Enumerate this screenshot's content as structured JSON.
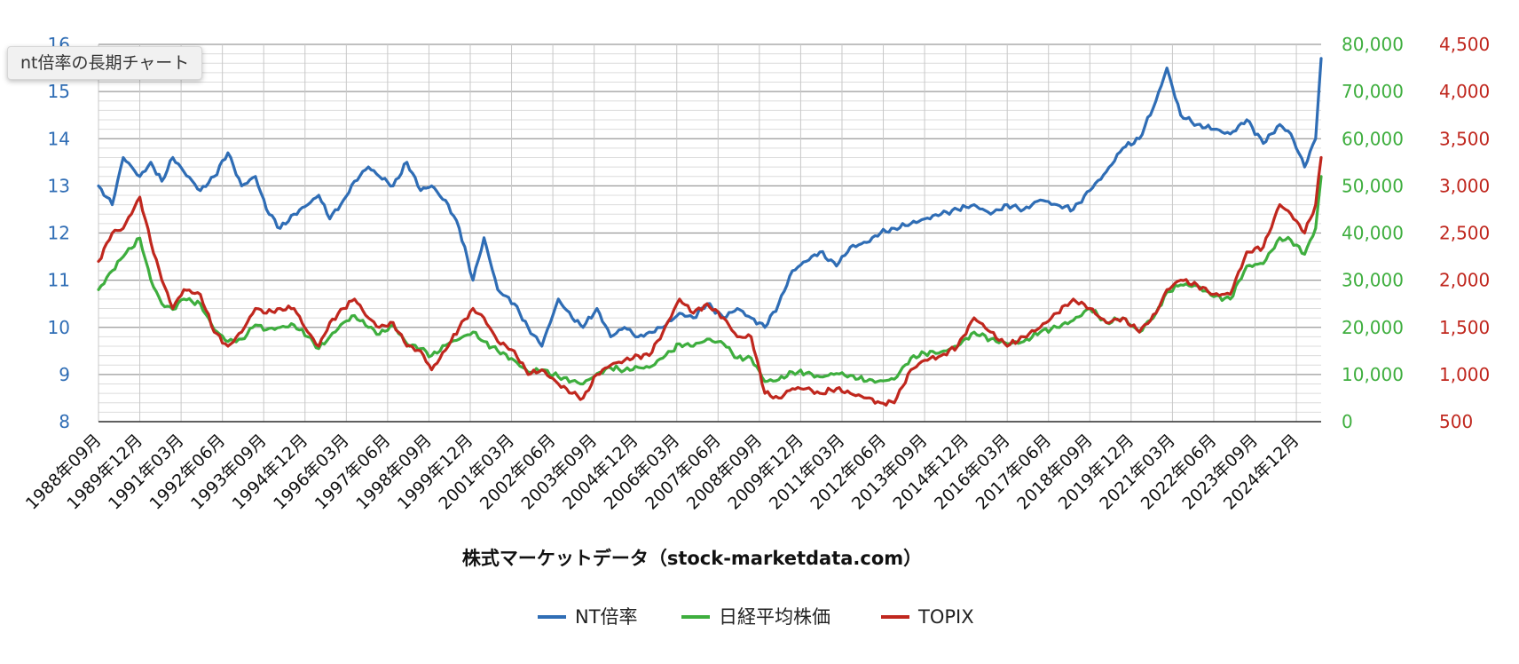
{
  "tooltip": "nt倍率の長期チャート",
  "chart_data": {
    "type": "line",
    "xlabel": "株式マーケットデータ（stock-marketdata.com）",
    "legend_position": "bottom",
    "grid": true,
    "x_range": [
      "1988-09",
      "2025-09"
    ],
    "x_ticks": [
      "1988年09月",
      "1989年12月",
      "1991年03月",
      "1992年06月",
      "1993年09月",
      "1994年12月",
      "1996年03月",
      "1997年06月",
      "1998年09月",
      "1999年12月",
      "2001年03月",
      "2002年06月",
      "2003年09月",
      "2004年12月",
      "2006年03月",
      "2007年06月",
      "2008年09月",
      "2009年12月",
      "2011年03月",
      "2012年06月",
      "2013年09月",
      "2014年12月",
      "2016年03月",
      "2017年06月",
      "2018年09月",
      "2019年12月",
      "2021年03月",
      "2022年06月",
      "2023年09月",
      "2024年12月"
    ],
    "axes": {
      "left": {
        "min": 8,
        "max": 16,
        "ticks": [
          "8",
          "9",
          "10",
          "11",
          "12",
          "13",
          "14",
          "15",
          "16"
        ],
        "color": "#2f6db5"
      },
      "right1": {
        "min": 0,
        "max": 80000,
        "ticks": [
          "0",
          "10,000",
          "20,000",
          "30,000",
          "40,000",
          "50,000",
          "60,000",
          "70,000",
          "80,000"
        ],
        "color": "#3eae3e"
      },
      "right2": {
        "min": 500,
        "max": 4500,
        "ticks": [
          "500",
          "1,000",
          "1,500",
          "2,000",
          "2,500",
          "3,000",
          "3,500",
          "4,000",
          "4,500"
        ],
        "color": "#c0271e"
      }
    },
    "series": [
      {
        "name": "NT倍率",
        "axis": "left",
        "color": "#2f6db5",
        "x": [
          "1988-09",
          "1989-02",
          "1989-06",
          "1989-12",
          "1990-04",
          "1990-08",
          "1990-12",
          "1991-04",
          "1991-10",
          "1992-03",
          "1992-08",
          "1993-01",
          "1993-06",
          "1993-10",
          "1994-03",
          "1994-08",
          "1995-01",
          "1995-05",
          "1995-09",
          "1996-02",
          "1996-06",
          "1996-11",
          "1997-03",
          "1997-08",
          "1998-01",
          "1998-06",
          "1998-10",
          "1999-04",
          "1999-08",
          "2000-01",
          "2000-05",
          "2000-10",
          "2001-04",
          "2001-09",
          "2002-02",
          "2002-08",
          "2003-01",
          "2003-05",
          "2003-10",
          "2004-03",
          "2004-08",
          "2005-01",
          "2005-05",
          "2005-10",
          "2006-04",
          "2006-09",
          "2007-02",
          "2007-08",
          "2008-01",
          "2008-06",
          "2008-11",
          "2009-04",
          "2009-09",
          "2010-02",
          "2010-07",
          "2011-01",
          "2011-06",
          "2011-12",
          "2012-05",
          "2012-10",
          "2013-04",
          "2013-09",
          "2014-03",
          "2014-09",
          "2015-03",
          "2015-09",
          "2016-03",
          "2016-09",
          "2017-03",
          "2017-09",
          "2018-03",
          "2018-09",
          "2019-03",
          "2019-09",
          "2020-03",
          "2020-09",
          "2021-01",
          "2021-06",
          "2021-12",
          "2022-06",
          "2022-12",
          "2023-06",
          "2023-12",
          "2024-06",
          "2024-10",
          "2025-03",
          "2025-07",
          "2025-09"
        ],
        "values": [
          13.0,
          12.6,
          13.6,
          13.2,
          13.5,
          13.1,
          13.6,
          13.3,
          12.9,
          13.2,
          13.7,
          13.0,
          13.2,
          12.5,
          12.1,
          12.4,
          12.6,
          12.8,
          12.3,
          12.7,
          13.1,
          13.4,
          13.2,
          13.0,
          13.5,
          12.9,
          13.0,
          12.6,
          12.1,
          11.0,
          11.9,
          10.8,
          10.5,
          10.0,
          9.6,
          10.6,
          10.2,
          10.0,
          10.4,
          9.8,
          10.0,
          9.8,
          9.9,
          10.0,
          10.3,
          10.2,
          10.5,
          10.2,
          10.4,
          10.2,
          10.0,
          10.5,
          11.2,
          11.4,
          11.6,
          11.3,
          11.7,
          11.8,
          12.0,
          12.1,
          12.2,
          12.3,
          12.4,
          12.5,
          12.6,
          12.4,
          12.6,
          12.5,
          12.7,
          12.6,
          12.5,
          12.9,
          13.3,
          13.8,
          14.0,
          14.8,
          15.5,
          14.5,
          14.3,
          14.2,
          14.1,
          14.4,
          13.9,
          14.3,
          14.1,
          13.4,
          14.0,
          15.7
        ]
      },
      {
        "name": "日経平均株価",
        "axis": "right1",
        "color": "#3eae3e",
        "x": [
          "1988-09",
          "1989-02",
          "1989-06",
          "1989-12",
          "1990-04",
          "1990-08",
          "1990-12",
          "1991-04",
          "1991-10",
          "1992-03",
          "1992-08",
          "1993-01",
          "1993-06",
          "1993-10",
          "1994-03",
          "1994-08",
          "1995-01",
          "1995-05",
          "1995-09",
          "1996-02",
          "1996-06",
          "1996-11",
          "1997-03",
          "1997-08",
          "1998-01",
          "1998-06",
          "1998-10",
          "1999-04",
          "1999-08",
          "2000-01",
          "2000-05",
          "2000-10",
          "2001-04",
          "2001-09",
          "2002-02",
          "2002-08",
          "2003-01",
          "2003-05",
          "2003-10",
          "2004-03",
          "2004-08",
          "2005-01",
          "2005-05",
          "2005-10",
          "2006-04",
          "2006-09",
          "2007-02",
          "2007-08",
          "2008-01",
          "2008-06",
          "2008-11",
          "2009-04",
          "2009-09",
          "2010-02",
          "2010-07",
          "2011-01",
          "2011-06",
          "2011-12",
          "2012-05",
          "2012-10",
          "2013-04",
          "2013-09",
          "2014-03",
          "2014-09",
          "2015-03",
          "2015-09",
          "2016-03",
          "2016-09",
          "2017-03",
          "2017-09",
          "2018-03",
          "2018-09",
          "2019-03",
          "2019-09",
          "2020-03",
          "2020-09",
          "2021-01",
          "2021-06",
          "2021-12",
          "2022-06",
          "2022-12",
          "2023-06",
          "2023-12",
          "2024-06",
          "2024-10",
          "2025-03",
          "2025-07",
          "2025-09"
        ],
        "values": [
          28000,
          32000,
          35000,
          38900,
          30000,
          25000,
          23800,
          26000,
          25000,
          19500,
          17000,
          17500,
          20500,
          19500,
          20000,
          20500,
          18000,
          15500,
          18000,
          21000,
          22500,
          20000,
          18500,
          20500,
          16500,
          15500,
          14000,
          16500,
          17500,
          19000,
          17000,
          15000,
          13000,
          10500,
          11000,
          9500,
          8600,
          8000,
          10200,
          11400,
          10900,
          11500,
          11500,
          13500,
          16500,
          16000,
          17500,
          16500,
          13500,
          13500,
          8500,
          8900,
          10500,
          10300,
          9500,
          10200,
          9800,
          8600,
          8700,
          9000,
          13500,
          14500,
          14800,
          16000,
          19000,
          17500,
          16500,
          17000,
          19000,
          20000,
          21500,
          24000,
          21000,
          22000,
          19000,
          23000,
          27500,
          29000,
          28800,
          26500,
          26000,
          33000,
          33500,
          39000,
          38500,
          35500,
          41000,
          52000
        ]
      },
      {
        "name": "TOPIX",
        "axis": "right2",
        "color": "#c0271e",
        "x": [
          "1988-09",
          "1989-02",
          "1989-06",
          "1989-12",
          "1990-04",
          "1990-08",
          "1990-12",
          "1991-04",
          "1991-10",
          "1992-03",
          "1992-08",
          "1993-01",
          "1993-06",
          "1993-10",
          "1994-03",
          "1994-08",
          "1995-01",
          "1995-05",
          "1995-09",
          "1996-02",
          "1996-06",
          "1996-11",
          "1997-03",
          "1997-08",
          "1998-01",
          "1998-06",
          "1998-10",
          "1999-04",
          "1999-08",
          "2000-01",
          "2000-05",
          "2000-10",
          "2001-04",
          "2001-09",
          "2002-02",
          "2002-08",
          "2003-01",
          "2003-05",
          "2003-10",
          "2004-03",
          "2004-08",
          "2005-01",
          "2005-05",
          "2005-10",
          "2006-04",
          "2006-09",
          "2007-02",
          "2007-08",
          "2008-01",
          "2008-06",
          "2008-11",
          "2009-04",
          "2009-09",
          "2010-02",
          "2010-07",
          "2011-01",
          "2011-06",
          "2011-12",
          "2012-05",
          "2012-10",
          "2013-04",
          "2013-09",
          "2014-03",
          "2014-09",
          "2015-03",
          "2015-09",
          "2016-03",
          "2016-09",
          "2017-03",
          "2017-09",
          "2018-03",
          "2018-09",
          "2019-03",
          "2019-09",
          "2020-03",
          "2020-09",
          "2021-01",
          "2021-06",
          "2021-12",
          "2022-06",
          "2022-12",
          "2023-06",
          "2023-12",
          "2024-06",
          "2024-10",
          "2025-03",
          "2025-07",
          "2025-09"
        ],
        "values": [
          2200,
          2500,
          2550,
          2880,
          2400,
          2000,
          1700,
          1900,
          1850,
          1450,
          1300,
          1450,
          1700,
          1650,
          1700,
          1700,
          1450,
          1300,
          1550,
          1700,
          1800,
          1600,
          1500,
          1550,
          1300,
          1250,
          1050,
          1300,
          1500,
          1700,
          1600,
          1350,
          1250,
          1000,
          1050,
          900,
          800,
          750,
          1000,
          1100,
          1150,
          1200,
          1200,
          1450,
          1800,
          1650,
          1750,
          1600,
          1400,
          1400,
          800,
          750,
          850,
          850,
          800,
          850,
          800,
          750,
          700,
          700,
          1050,
          1150,
          1200,
          1300,
          1600,
          1450,
          1300,
          1400,
          1500,
          1650,
          1800,
          1700,
          1550,
          1600,
          1450,
          1650,
          1900,
          2000,
          1950,
          1850,
          1850,
          2300,
          2350,
          2800,
          2700,
          2500,
          2800,
          3300
        ]
      }
    ]
  }
}
